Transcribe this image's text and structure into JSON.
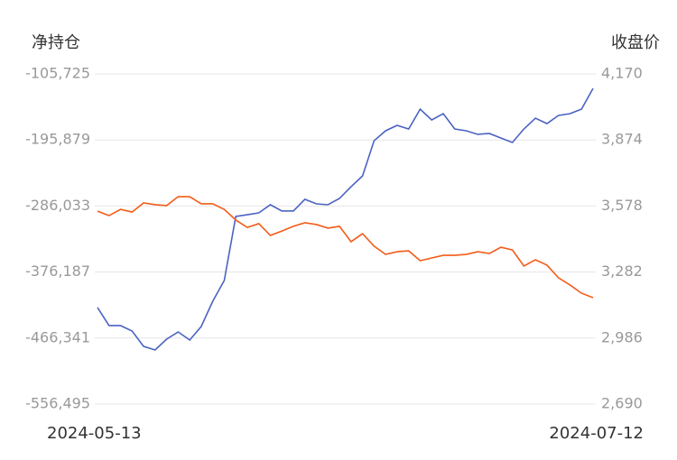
{
  "chart_data": {
    "type": "line",
    "y_title": "净持仓",
    "y2_title": "收盘价",
    "categories": [
      "2024-05-13",
      null,
      null,
      null,
      null,
      null,
      null,
      null,
      null,
      null,
      null,
      null,
      null,
      null,
      null,
      null,
      null,
      null,
      null,
      null,
      null,
      null,
      null,
      null,
      null,
      null,
      null,
      null,
      null,
      null,
      null,
      null,
      null,
      null,
      null,
      null,
      null,
      null,
      null,
      null,
      null,
      null,
      null,
      "2024-07-12"
    ],
    "series": [
      {
        "color": "#4b63c2",
        "axis": "y",
        "values": [
          -424700,
          -449300,
          -449300,
          -456700,
          -477700,
          -482600,
          -467800,
          -458000,
          -469000,
          -450600,
          -416100,
          -387800,
          -300300,
          -297900,
          -295400,
          -284300,
          -292900,
          -292900,
          -276900,
          -283100,
          -284300,
          -275700,
          -259700,
          -244900,
          -196900,
          -183300,
          -175900,
          -180900,
          -153800,
          -168500,
          -159900,
          -180900,
          -183300,
          -188200,
          -187000,
          -193200,
          -199300,
          -180900,
          -166100,
          -173500,
          -162400,
          -159900,
          -153800,
          -125400
        ]
      },
      {
        "color": "#f25c19",
        "axis": "y2",
        "values": [
          3555,
          3535,
          3563,
          3551,
          3592,
          3584,
          3580,
          3620,
          3620,
          3588,
          3588,
          3563,
          3515,
          3482,
          3499,
          3446,
          3466,
          3487,
          3503,
          3495,
          3479,
          3487,
          3418,
          3454,
          3398,
          3361,
          3373,
          3377,
          3333,
          3345,
          3357,
          3357,
          3361,
          3373,
          3365,
          3393,
          3381,
          3309,
          3337,
          3313,
          3256,
          3224,
          3187,
          3167
        ]
      }
    ],
    "ylim": [
      -556495,
      -105725
    ],
    "yticks": [
      {
        "value": -556495,
        "label": "-556,495"
      },
      {
        "value": -466341,
        "label": "-466,341"
      },
      {
        "value": -376187,
        "label": "-376,187"
      },
      {
        "value": -286033,
        "label": "-286,033"
      },
      {
        "value": -195879,
        "label": "-195,879"
      },
      {
        "value": -105725,
        "label": "-105,725"
      }
    ],
    "y2lim": [
      2690,
      4170
    ],
    "y2ticks": [
      {
        "value": 2690,
        "label": "2,690"
      },
      {
        "value": 2986,
        "label": "2,986"
      },
      {
        "value": 3282,
        "label": "3,282"
      },
      {
        "value": 3578,
        "label": "3,578"
      },
      {
        "value": 3874,
        "label": "3,874"
      },
      {
        "value": 4170,
        "label": "4,170"
      }
    ],
    "grid": true
  }
}
